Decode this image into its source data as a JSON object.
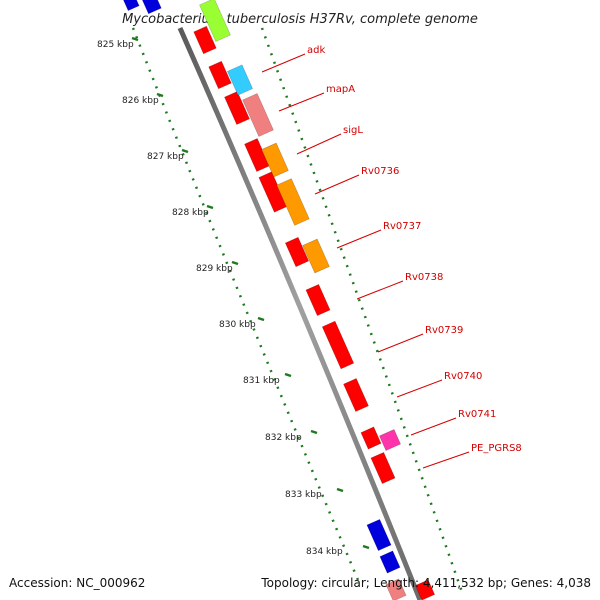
{
  "title": "Mycobacterium tuberculosis H37Rv, complete genome",
  "ticks": [
    "825 kbp",
    "826 kbp",
    "827 kbp",
    "828 kbp",
    "829 kbp",
    "830 kbp",
    "831 kbp",
    "832 kbp",
    "833 kbp",
    "834 kbp"
  ],
  "gene_labels": [
    "adk",
    "mapA",
    "sigL",
    "Rv0736",
    "Rv0737",
    "Rv0738",
    "Rv0739",
    "Rv0740",
    "Rv0741",
    "PE_PGRS8"
  ],
  "footer": {
    "accession": "Accession: NC_000962",
    "info": "Topology: circular; Length: 4,411,532 bp; Genes: 4,038"
  },
  "colors": {
    "backbone": "#8c8c8c",
    "tick_dots": "#1f7a1f",
    "gene_red": "#ff0000",
    "gene_blue": "#0000dd",
    "gene_orange": "#ff9900",
    "gene_green": "#99ff33",
    "gene_cyan": "#33ccff",
    "gene_pink": "#f08080",
    "gene_magenta": "#ff33aa",
    "label_line": "#d40000"
  }
}
